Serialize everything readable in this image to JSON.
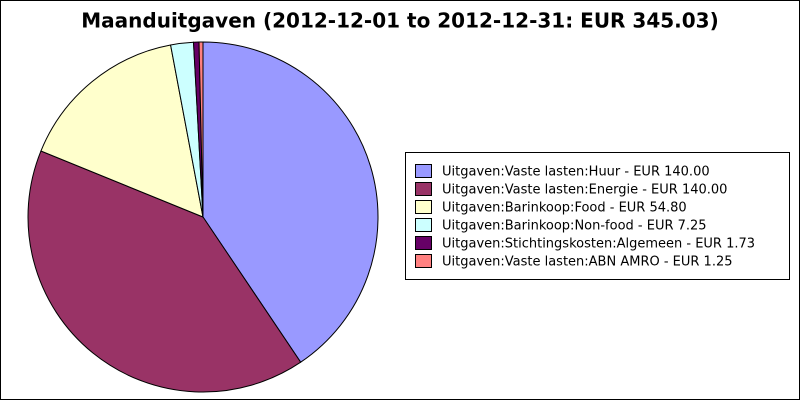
{
  "chart_data": {
    "type": "pie",
    "title": "Maanduitgaven (2012-12-01 to 2012-12-31: EUR 345.03)",
    "categories": [
      "Uitgaven:Vaste lasten:Huur - EUR 140.00",
      "Uitgaven:Vaste lasten:Energie - EUR 140.00",
      "Uitgaven:Barinkoop:Food - EUR 54.80",
      "Uitgaven:Barinkoop:Non-food - EUR 7.25",
      "Uitgaven:Stichtingskosten:Algemeen - EUR 1.73",
      "Uitgaven:Vaste lasten:ABN AMRO - EUR 1.25"
    ],
    "values": [
      140.0,
      140.0,
      54.8,
      7.25,
      1.73,
      1.25
    ],
    "colors": [
      "#9999ff",
      "#993366",
      "#ffffcc",
      "#ccffff",
      "#660066",
      "#ff8080"
    ],
    "legend": "right"
  }
}
